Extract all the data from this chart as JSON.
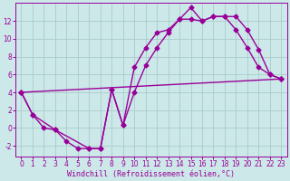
{
  "xlabel": "Windchill (Refroidissement éolien,°C)",
  "bg_color": "#cce8e8",
  "grid_color": "#aacccc",
  "line_color": "#990099",
  "xlim": [
    -0.5,
    23.5
  ],
  "ylim": [
    -3.2,
    14.0
  ],
  "xticks": [
    0,
    1,
    2,
    3,
    4,
    5,
    6,
    7,
    8,
    9,
    10,
    11,
    12,
    13,
    14,
    15,
    16,
    17,
    18,
    19,
    20,
    21,
    22,
    23
  ],
  "yticks": [
    -2,
    0,
    2,
    4,
    6,
    8,
    10,
    12
  ],
  "series1_x": [
    0,
    1,
    2,
    3,
    4,
    5,
    6,
    7,
    8,
    9,
    10,
    11,
    12,
    13,
    14,
    15,
    16,
    17,
    18,
    19,
    20,
    21,
    22,
    23
  ],
  "series1_y": [
    4.0,
    1.5,
    0.0,
    -0.2,
    -1.5,
    -2.3,
    -2.3,
    -2.3,
    4.3,
    0.3,
    6.8,
    9.0,
    10.7,
    11.0,
    12.2,
    12.2,
    12.0,
    12.5,
    12.5,
    11.0,
    9.0,
    6.8,
    6.0,
    5.5
  ],
  "series2_x": [
    0,
    1,
    3,
    6,
    7,
    8,
    9,
    10,
    11,
    12,
    13,
    14,
    15,
    16,
    17,
    18,
    19,
    20,
    21,
    22,
    23
  ],
  "series2_y": [
    4.0,
    1.5,
    -0.2,
    -2.3,
    -2.3,
    4.3,
    0.3,
    4.0,
    7.0,
    9.0,
    10.7,
    12.2,
    13.5,
    12.0,
    12.5,
    12.5,
    12.5,
    11.0,
    8.8,
    6.0,
    5.5
  ],
  "series3_x": [
    0,
    23
  ],
  "series3_y": [
    4.0,
    5.5
  ],
  "marker": "D",
  "markersize": 2.5,
  "linewidth": 1.0,
  "tick_fontsize": 5.5,
  "xlabel_fontsize": 6.0
}
